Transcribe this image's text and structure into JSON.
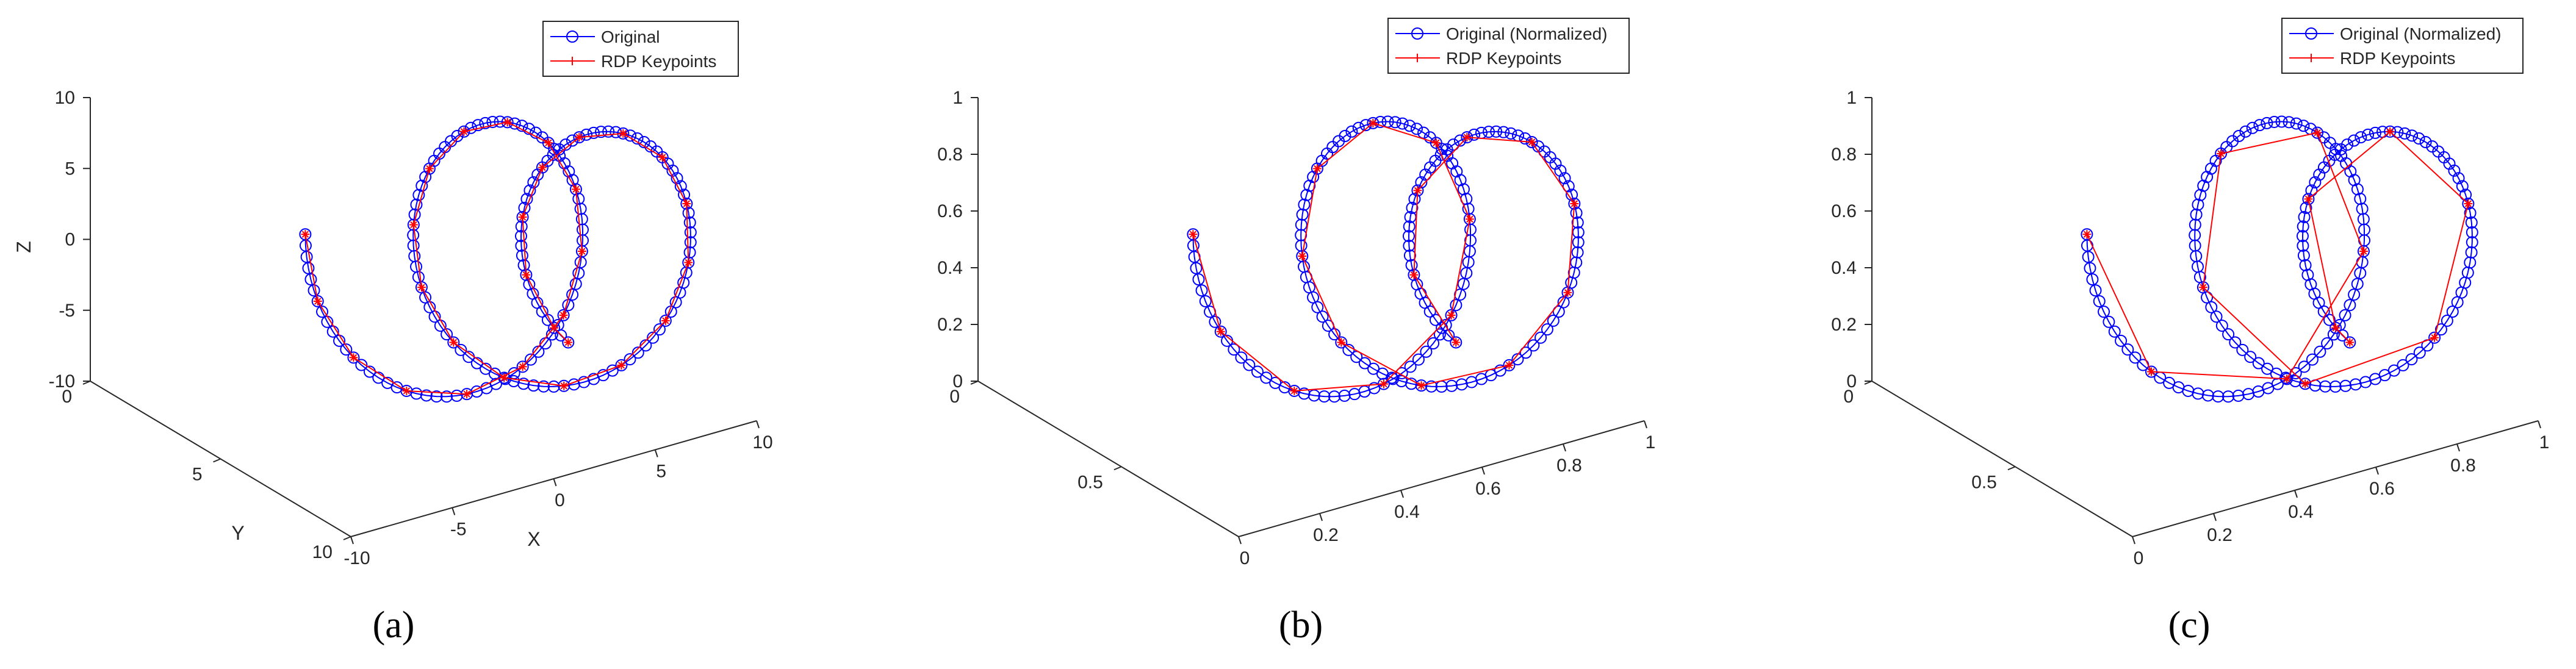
{
  "figure": {
    "panel_captions": [
      "(a)",
      "(b)",
      "(c)"
    ]
  },
  "colors": {
    "original": "#0000ff",
    "rdp": "#ff0000",
    "axis": "#262626",
    "background": "#ffffff"
  },
  "chart_data": [
    {
      "type": "line3d",
      "panel": "(a)",
      "xlabel": "X",
      "ylabel": "Y",
      "zlabel": "Z",
      "xlim": [
        -10,
        10
      ],
      "ylim": [
        0,
        10
      ],
      "zlim": [
        -10,
        10
      ],
      "x_ticks": [
        "-10",
        "-5",
        "0",
        "5",
        "10"
      ],
      "y_ticks": [
        "0",
        "5",
        "10"
      ],
      "z_ticks": [
        "-10",
        "-5",
        "0",
        "5",
        "10"
      ],
      "legend": [
        "Original",
        "RDP Keypoints"
      ],
      "legend_position": "top-right",
      "grid": false,
      "series": [
        {
          "name": "Original",
          "marker": "circle",
          "color": "#0000ff",
          "description_points": "dense spiral samples"
        },
        {
          "name": "RDP Keypoints",
          "marker": "asterisk",
          "color": "#ff0000"
        }
      ],
      "curve": {
        "t": [
          0,
          1
        ],
        "x_range": [
          -10,
          10
        ],
        "y_range": [
          0,
          10
        ],
        "z_range": [
          -10,
          10
        ]
      }
    },
    {
      "type": "line3d",
      "panel": "(b)",
      "xlabel": "",
      "ylabel": "",
      "zlabel": "",
      "xlim": [
        0,
        1
      ],
      "ylim": [
        0,
        1
      ],
      "zlim": [
        0,
        1
      ],
      "x_ticks": [
        "0",
        "0.2",
        "0.4",
        "0.6",
        "0.8",
        "1"
      ],
      "y_ticks": [
        "0",
        "0.5"
      ],
      "z_ticks": [
        "0",
        "0.2",
        "0.4",
        "0.6",
        "0.8",
        "1"
      ],
      "legend": [
        "Original (Normalized)",
        "RDP Keypoints"
      ],
      "legend_position": "top-right",
      "grid": false
    },
    {
      "type": "line3d",
      "panel": "(c)",
      "xlabel": "",
      "ylabel": "",
      "zlabel": "",
      "xlim": [
        0,
        1
      ],
      "ylim": [
        0,
        1
      ],
      "zlim": [
        0,
        1
      ],
      "x_ticks": [
        "0",
        "0.2",
        "0.4",
        "0.6",
        "0.8",
        "1"
      ],
      "y_ticks": [
        "0",
        "0.5"
      ],
      "z_ticks": [
        "0",
        "0.2",
        "0.4",
        "0.6",
        "0.8",
        "1"
      ],
      "legend": [
        "Original (Normalized)",
        "RDP Keypoints"
      ],
      "legend_position": "top-right",
      "grid": false
    }
  ]
}
